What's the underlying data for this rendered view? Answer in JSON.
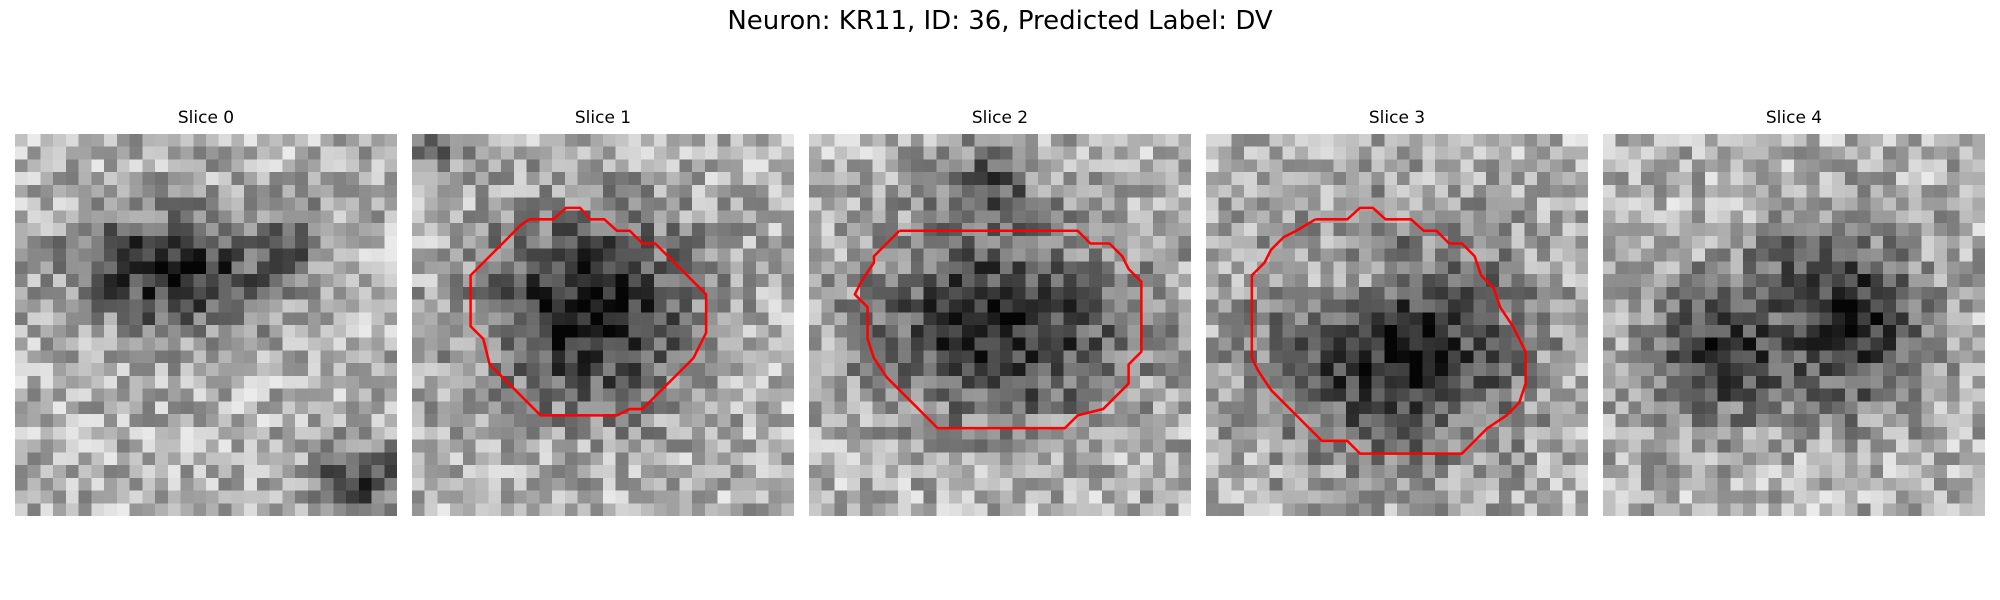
{
  "figure": {
    "title": "Neuron: KR11, ID: 36, Predicted Label: DV"
  },
  "panels": [
    {
      "title": "Slice 0"
    },
    {
      "title": "Slice 1"
    },
    {
      "title": "Slice 2"
    },
    {
      "title": "Slice 3"
    },
    {
      "title": "Slice 4"
    }
  ],
  "colors": {
    "background": "#ffffff",
    "contour": "#ff0000",
    "colormap": "grayscale"
  }
}
